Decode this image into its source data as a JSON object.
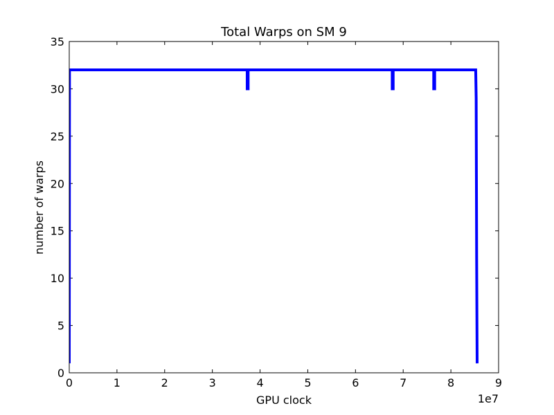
{
  "chart_data": {
    "type": "line",
    "title": "Total Warps on SM 9",
    "xlabel": "GPU clock",
    "ylabel": "number of warps",
    "x_offset_label": "1e7",
    "xlim": [
      0,
      90000000
    ],
    "ylim": [
      0,
      35
    ],
    "x_ticks": [
      0,
      10000000,
      20000000,
      30000000,
      40000000,
      50000000,
      60000000,
      70000000,
      80000000,
      90000000
    ],
    "x_tick_labels": [
      "0",
      "1",
      "2",
      "3",
      "4",
      "5",
      "6",
      "7",
      "8",
      "9"
    ],
    "y_ticks": [
      0,
      5,
      10,
      15,
      20,
      25,
      30,
      35
    ],
    "y_tick_labels": [
      "0",
      "5",
      "10",
      "15",
      "20",
      "25",
      "30",
      "35"
    ],
    "grid": false,
    "line_color": "#0000ff",
    "series": [
      {
        "x": [
          0,
          50000,
          100000,
          37200000,
          37300000,
          37300000,
          37500000,
          37500000,
          67600000,
          67700000,
          67700000,
          67900000,
          67900000,
          76300000,
          76400000,
          76400000,
          76600000,
          76600000,
          85200000,
          85300000,
          85400000,
          85500000
        ],
        "y": [
          1,
          32,
          32,
          32,
          32,
          30,
          30,
          32,
          32,
          32,
          30,
          30,
          32,
          32,
          32,
          30,
          30,
          32,
          32,
          29,
          12,
          1
        ]
      }
    ]
  }
}
